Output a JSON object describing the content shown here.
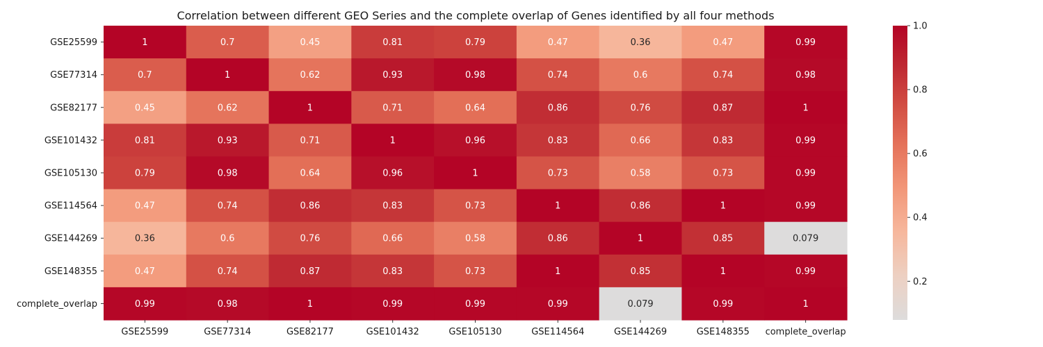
{
  "chart_data": {
    "type": "heatmap",
    "title": "Correlation between different GEO Series and the complete overlap of Genes identified by all four methods",
    "xlabel": "",
    "ylabel": "",
    "rows": [
      "GSE25599",
      "GSE77314",
      "GSE82177",
      "GSE101432",
      "GSE105130",
      "GSE114564",
      "GSE144269",
      "GSE148355",
      "complete_overlap"
    ],
    "columns": [
      "GSE25599",
      "GSE77314",
      "GSE82177",
      "GSE101432",
      "GSE105130",
      "GSE114564",
      "GSE144269",
      "GSE148355",
      "complete_overlap"
    ],
    "values": [
      [
        1,
        0.7,
        0.45,
        0.81,
        0.79,
        0.47,
        0.36,
        0.47,
        0.99
      ],
      [
        0.7,
        1,
        0.62,
        0.93,
        0.98,
        0.74,
        0.6,
        0.74,
        0.98
      ],
      [
        0.45,
        0.62,
        1,
        0.71,
        0.64,
        0.86,
        0.76,
        0.87,
        1
      ],
      [
        0.81,
        0.93,
        0.71,
        1,
        0.96,
        0.83,
        0.66,
        0.83,
        0.99
      ],
      [
        0.79,
        0.98,
        0.64,
        0.96,
        1,
        0.73,
        0.58,
        0.73,
        0.99
      ],
      [
        0.47,
        0.74,
        0.86,
        0.83,
        0.73,
        1,
        0.86,
        1,
        0.99
      ],
      [
        0.36,
        0.6,
        0.76,
        0.66,
        0.58,
        0.86,
        1,
        0.85,
        0.079
      ],
      [
        0.47,
        0.74,
        0.87,
        0.83,
        0.73,
        1,
        0.85,
        1,
        0.99
      ],
      [
        0.99,
        0.98,
        1,
        0.99,
        0.99,
        0.99,
        0.079,
        0.99,
        1
      ]
    ],
    "colormap": "coolwarm (upper half)",
    "colorbar": {
      "range": [
        0.079,
        1
      ],
      "ticks": [
        0.2,
        0.4,
        0.6,
        0.8,
        1.0
      ],
      "tick_labels": [
        "0.2",
        "0.4",
        "0.6",
        "0.8",
        "1.0"
      ]
    },
    "annotations": true,
    "grid": false
  }
}
